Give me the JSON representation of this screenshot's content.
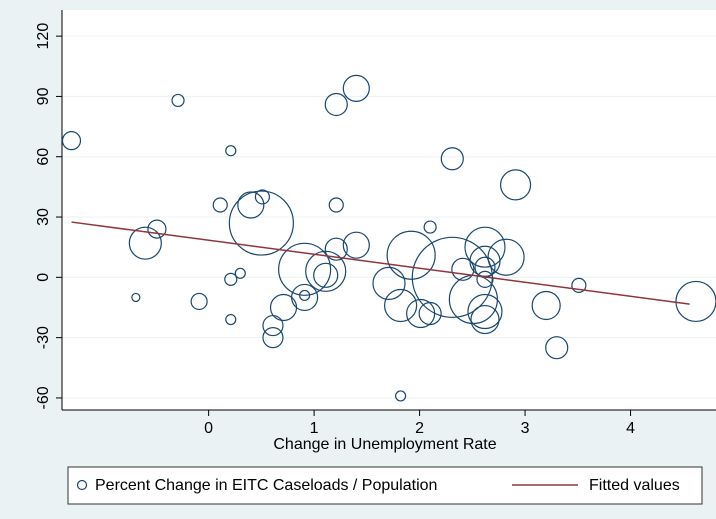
{
  "chart_data": {
    "type": "scatter",
    "x_label": "Change in Unemployment Rate",
    "xlim": [
      -1.39,
      4.81
    ],
    "ylim": [
      -66,
      133
    ],
    "xticks": [
      0,
      1,
      2,
      3,
      4
    ],
    "yticks": [
      -60,
      -30,
      0,
      30,
      60,
      90,
      120
    ],
    "grid": true,
    "legend": "bottom",
    "series": [
      {
        "name": "Percent Change in EITC Caseloads / Population",
        "type": "scatter",
        "color": "#1a476f",
        "x": [
          -1.3,
          -0.29,
          -0.69,
          -0.49,
          -0.6,
          -0.09,
          0.21,
          0.11,
          0.21,
          0.3,
          0.21,
          0.4,
          0.5,
          0.51,
          0.61,
          0.61,
          0.71,
          0.91,
          0.91,
          0.91,
          1.11,
          1.11,
          1.21,
          1.21,
          1.21,
          1.4,
          1.4,
          1.71,
          1.82,
          1.92,
          1.82,
          2.1,
          2.01,
          2.1,
          2.31,
          2.31,
          2.41,
          2.62,
          2.62,
          2.62,
          2.62,
          2.51,
          2.62,
          2.62,
          2.82,
          2.91,
          3.2,
          3.3,
          3.51,
          4.62
        ],
        "values": [
          68,
          88,
          -10,
          24,
          17,
          -12,
          63,
          36,
          -1,
          2,
          -21,
          36,
          27,
          40,
          -24,
          -30,
          -15,
          -10,
          -9,
          4,
          3,
          1,
          14,
          36,
          86,
          94,
          16,
          -3,
          -14,
          11,
          -59,
          25,
          -18,
          -18,
          59,
          0,
          4,
          15,
          8,
          5,
          -1,
          -11,
          -21,
          -17,
          10,
          46,
          -14,
          -35,
          -4,
          -12
        ],
        "sizes": [
          9,
          6,
          4,
          9,
          16,
          8,
          5,
          7,
          6,
          5,
          5,
          13,
          32,
          7,
          10,
          10,
          13,
          13,
          5,
          26,
          20,
          12,
          11,
          7,
          11,
          13,
          13,
          16,
          16,
          24,
          5,
          6,
          14,
          11,
          11,
          40,
          11,
          20,
          15,
          10,
          8,
          24,
          14,
          17,
          18,
          15,
          14,
          11,
          7,
          20
        ]
      },
      {
        "name": "Fitted values",
        "type": "line",
        "color": "#90353b",
        "x": [
          -1.3,
          4.56
        ],
        "values": [
          27.5,
          -13.3
        ]
      }
    ]
  }
}
